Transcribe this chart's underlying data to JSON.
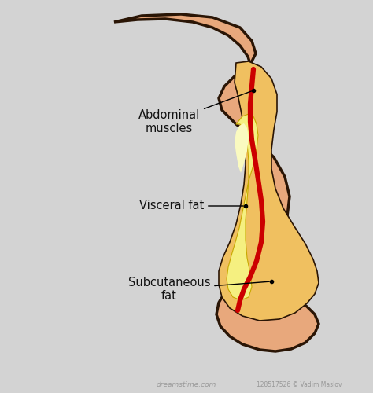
{
  "background_color": "#d3d3d3",
  "body_skin_color": "#E8A87C",
  "body_outline_color": "#2a1505",
  "subcutaneous_fat_color": "#F0C060",
  "subcutaneous_fat_outer": "#E8B840",
  "visceral_fat_color": "#F5F080",
  "visceral_fat_highlight": "#FAFAC0",
  "muscle_line_color": "#CC0000",
  "label_abdominal": "Abdominal\nmuscles",
  "label_visceral": "Visceral fat",
  "label_subcutaneous": "Subcutaneous\nfat",
  "text_color": "#111111",
  "font_size": 10.5,
  "watermark": "128517526 © Vadim Maslov",
  "dreamstimeurl": "dreamstime.com"
}
